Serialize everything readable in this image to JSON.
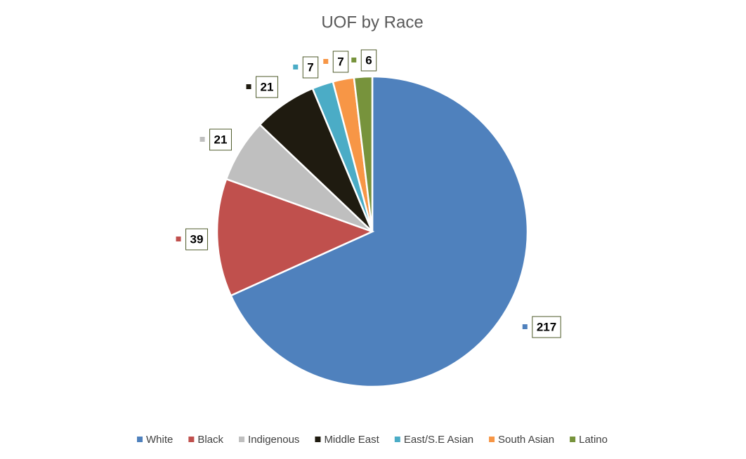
{
  "chart_data": {
    "type": "pie",
    "title": "UOF by Race",
    "categories": [
      "White",
      "Black",
      "Indigenous",
      "Middle East",
      "East/S.E Asian",
      "South Asian",
      "Latino"
    ],
    "values": [
      217,
      39,
      21,
      21,
      7,
      7,
      6
    ],
    "colors": [
      "#4f81bd",
      "#c0504d",
      "#bfbfbf",
      "#1f1b10",
      "#4bacc6",
      "#f79646",
      "#77933c"
    ],
    "legend": "bottom"
  }
}
